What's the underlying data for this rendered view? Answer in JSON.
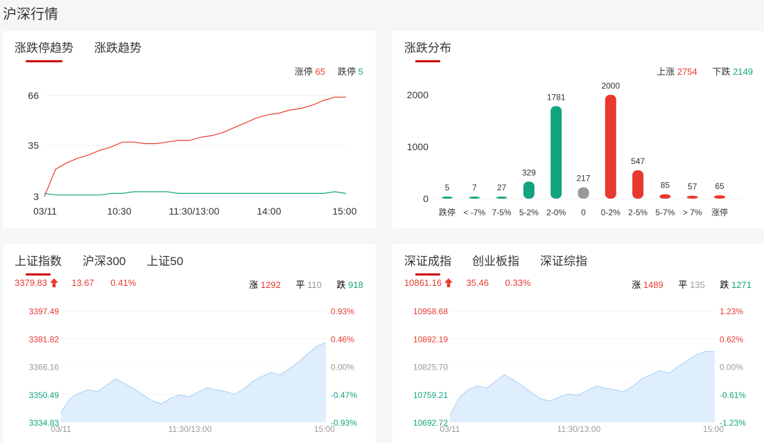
{
  "page_title": "沪深行情",
  "panel1": {
    "tabs": [
      "涨跌停趋势",
      "涨跌趋势"
    ],
    "legend": {
      "limit_up_label": "涨停",
      "limit_up_value": "65",
      "limit_down_label": "跌停",
      "limit_down_value": "5"
    }
  },
  "panel2": {
    "tabs": [
      "涨跌分布"
    ],
    "legend": {
      "up_label": "上涨",
      "up_value": "2754",
      "down_label": "下跌",
      "down_value": "2149"
    }
  },
  "panel3": {
    "tabs": [
      "上证指数",
      "沪深300",
      "上证50"
    ],
    "price": "3379.83",
    "change": "13.67",
    "pct": "0.41%",
    "rise_label": "涨",
    "rise_value": "1292",
    "flat_label": "平",
    "flat_value": "110",
    "fall_label": "跌",
    "fall_value": "918"
  },
  "panel4": {
    "tabs": [
      "深证成指",
      "创业板指",
      "深证综指"
    ],
    "price": "10861.16",
    "change": "35.46",
    "pct": "0.33%",
    "rise_label": "涨",
    "rise_value": "1489",
    "flat_label": "平",
    "flat_value": "135",
    "fall_label": "跌",
    "fall_value": "1271"
  },
  "colors": {
    "up": "#e8392f",
    "down": "#11a47e",
    "flat": "#999999",
    "area": "#dfeefc",
    "area_line": "#a9cdf2"
  },
  "chart_data": [
    {
      "type": "line",
      "x_ticks": [
        "03/11",
        "10:30",
        "11:30/13:00",
        "14:00",
        "15:00"
      ],
      "y_ticks": [
        "66",
        "35",
        "3"
      ],
      "ylim": [
        3,
        66
      ],
      "series": [
        {
          "name": "涨停",
          "values": [
            3,
            20,
            24,
            27,
            29,
            32,
            34,
            37,
            37,
            36,
            36,
            37,
            38,
            38,
            40,
            41,
            43,
            46,
            49,
            52,
            54,
            55,
            57,
            58,
            60,
            63,
            65,
            65
          ]
        },
        {
          "name": "跌停",
          "values": [
            5,
            4,
            4,
            4,
            4,
            4,
            5,
            5,
            6,
            6,
            6,
            6,
            5,
            5,
            5,
            5,
            5,
            5,
            5,
            5,
            5,
            5,
            5,
            5,
            5,
            5,
            6,
            5
          ]
        }
      ]
    },
    {
      "type": "bar",
      "categories": [
        "跌停",
        "< -7%",
        "7-5%",
        "5-2%",
        "2-0%",
        "0",
        "0-2%",
        "2-5%",
        "5-7%",
        "> 7%",
        "涨停"
      ],
      "values": [
        5,
        7,
        27,
        329,
        1781,
        217,
        2000,
        547,
        85,
        57,
        65
      ],
      "y_ticks": [
        "2000",
        "1000",
        "0"
      ],
      "ylim": [
        0,
        2000
      ]
    },
    {
      "type": "area",
      "x_ticks": [
        "03/11",
        "11:30/13:00",
        "15:00"
      ],
      "y_ticks": [
        "3397.49",
        "3381.82",
        "3366.16",
        "3350.49",
        "3334.83"
      ],
      "y_ticks_right": [
        "0.93%",
        "0.46%",
        "0.00%",
        "-0.47%",
        "-0.93%"
      ],
      "ylim": [
        3334.83,
        3397.49
      ],
      "values": [
        3340.5,
        3348.2,
        3351.3,
        3353.1,
        3352.0,
        3355.8,
        3359.2,
        3356.4,
        3353.7,
        3350.1,
        3346.9,
        3345.2,
        3348.4,
        3350.2,
        3349.1,
        3351.8,
        3354.3,
        3353.0,
        3352.1,
        3350.6,
        3353.4,
        3357.9,
        3360.5,
        3362.8,
        3361.4,
        3364.9,
        3368.7,
        3373.2,
        3377.4,
        3379.83
      ]
    },
    {
      "type": "area",
      "x_ticks": [
        "03/11",
        "11:30/13:00",
        "15:00"
      ],
      "y_ticks": [
        "10958.68",
        "10892.19",
        "10825.70",
        "10759.21",
        "10692.72"
      ],
      "y_ticks_right": [
        "1.23%",
        "0.62%",
        "0.00%",
        "-0.61%",
        "-1.23%"
      ],
      "ylim": [
        10692.72,
        10958.68
      ],
      "values": [
        10710.2,
        10750.4,
        10770.8,
        10779.5,
        10774.1,
        10790.9,
        10806.2,
        10792.5,
        10778.4,
        10762.3,
        10748.0,
        10743.6,
        10753.1,
        10760.0,
        10756.5,
        10768.0,
        10779.2,
        10774.0,
        10770.4,
        10765.8,
        10778.3,
        10796.5,
        10806.4,
        10815.6,
        10810.3,
        10825.9,
        10840.2,
        10853.8,
        10862.1,
        10861.16
      ]
    }
  ]
}
